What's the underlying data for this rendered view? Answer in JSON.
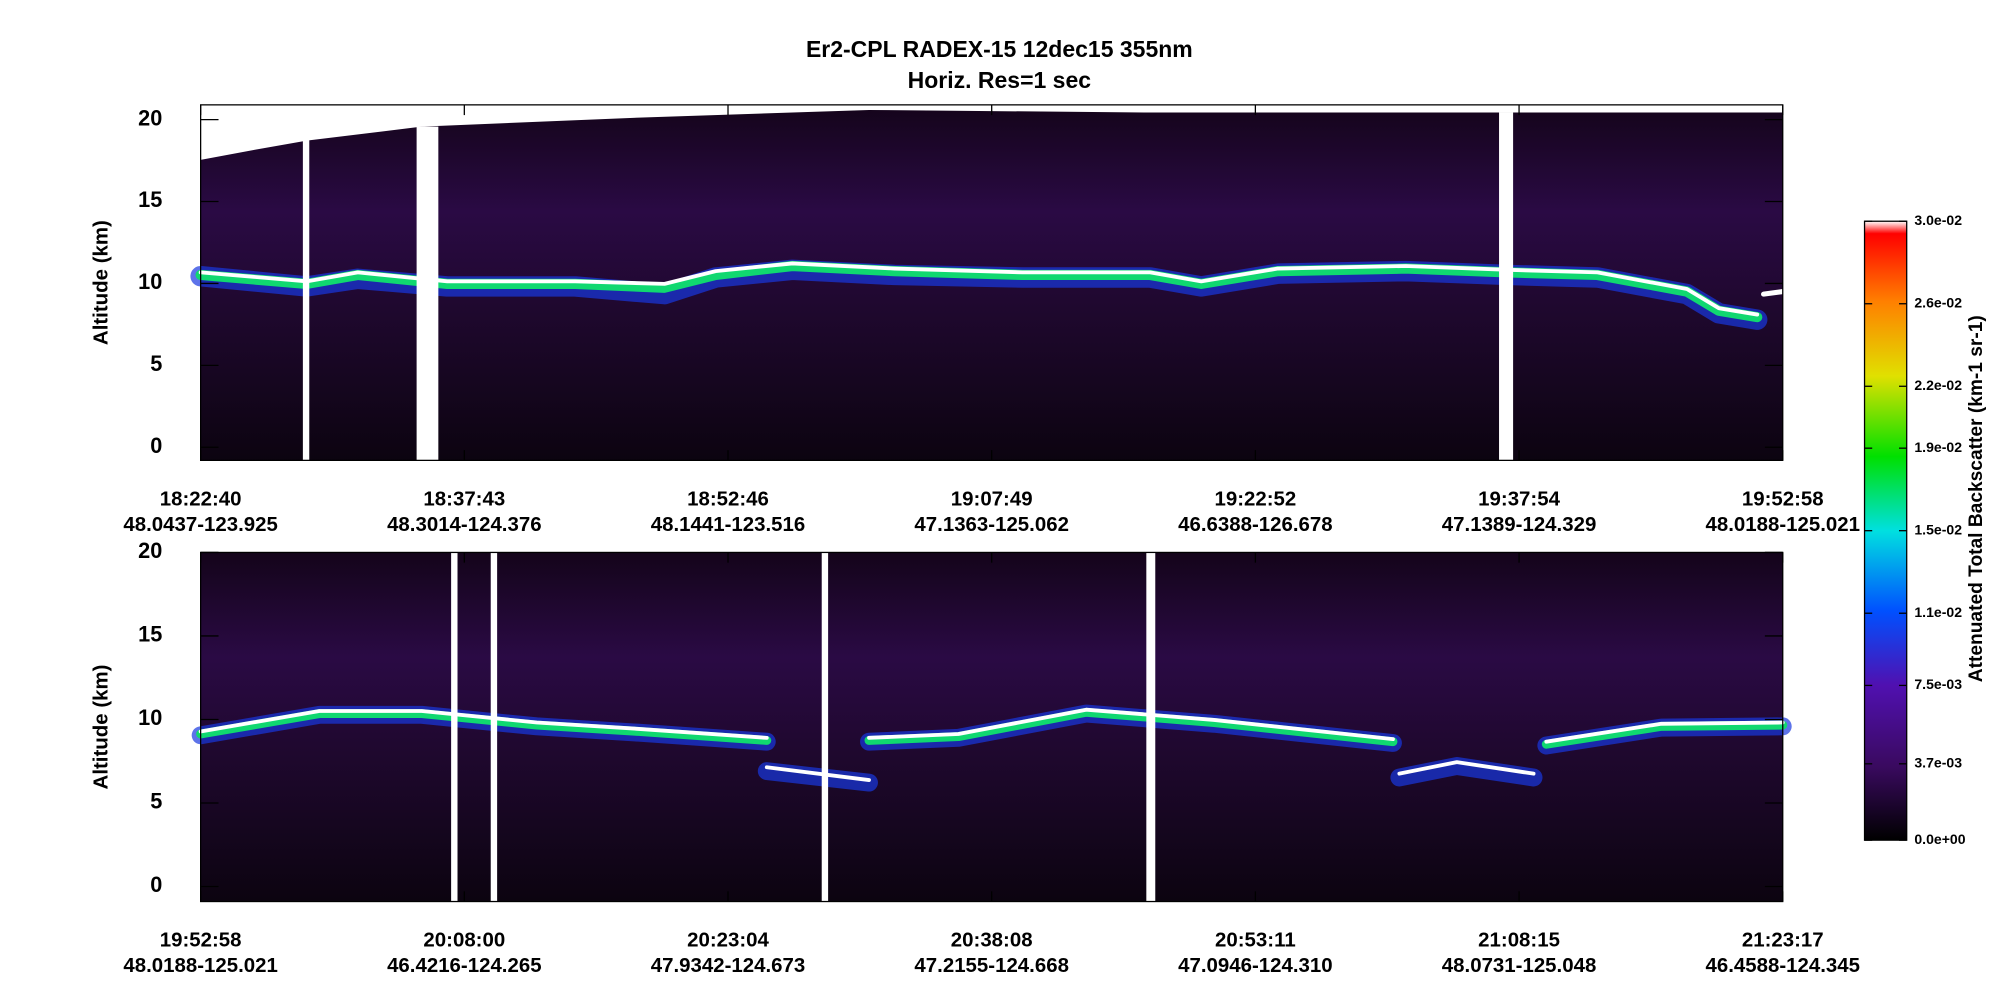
{
  "chart_data": {
    "type": "heatmap",
    "title": "Er2-CPL  RADEX-15  12dec15  355nm",
    "subtitle": "Horiz. Res=1 sec",
    "panels": [
      {
        "ylabel": "Altitude (km)",
        "ylim": [
          -0.8,
          20.9
        ],
        "yticks": [
          0,
          5,
          10,
          15,
          20
        ],
        "xticks": [
          {
            "time": "18:22:40",
            "location": "48.0437-123.925"
          },
          {
            "time": "18:37:43",
            "location": "48.3014-124.376"
          },
          {
            "time": "18:52:46",
            "location": "48.1441-123.516"
          },
          {
            "time": "19:07:49",
            "location": "47.1363-125.062"
          },
          {
            "time": "19:22:52",
            "location": "46.6388-126.678"
          },
          {
            "time": "19:37:54",
            "location": "47.1389-124.329"
          },
          {
            "time": "19:52:58",
            "location": "48.0188-125.021"
          }
        ]
      },
      {
        "ylabel": "Altitude (km)",
        "ylim": [
          -0.9,
          20
        ],
        "yticks": [
          0,
          5,
          10,
          15,
          20
        ],
        "xticks": [
          {
            "time": "19:52:58",
            "location": "48.0188-125.021"
          },
          {
            "time": "20:08:00",
            "location": "46.4216-124.265"
          },
          {
            "time": "20:23:04",
            "location": "47.9342-124.673"
          },
          {
            "time": "20:38:08",
            "location": "47.2155-124.668"
          },
          {
            "time": "20:53:11",
            "location": "47.0946-124.310"
          },
          {
            "time": "21:08:15",
            "location": "48.0731-125.048"
          },
          {
            "time": "21:23:17",
            "location": "46.4588-124.345"
          }
        ]
      }
    ],
    "colorbar": {
      "label": "Attenuated Total Backscatter (km-1 sr-1)",
      "clim": [
        0,
        0.03
      ],
      "ticks": [
        {
          "value": 0,
          "label": "0.0e+00"
        },
        {
          "value": 0.0037,
          "label": "3.7e-03"
        },
        {
          "value": 0.0075,
          "label": "7.5e-03"
        },
        {
          "value": 0.011,
          "label": "1.1e-02"
        },
        {
          "value": 0.015,
          "label": "1.5e-02"
        },
        {
          "value": 0.019,
          "label": "1.9e-02"
        },
        {
          "value": 0.022,
          "label": "2.2e-02"
        },
        {
          "value": 0.026,
          "label": "2.6e-02"
        },
        {
          "value": 0.03,
          "label": "3.0e-02"
        }
      ]
    }
  }
}
